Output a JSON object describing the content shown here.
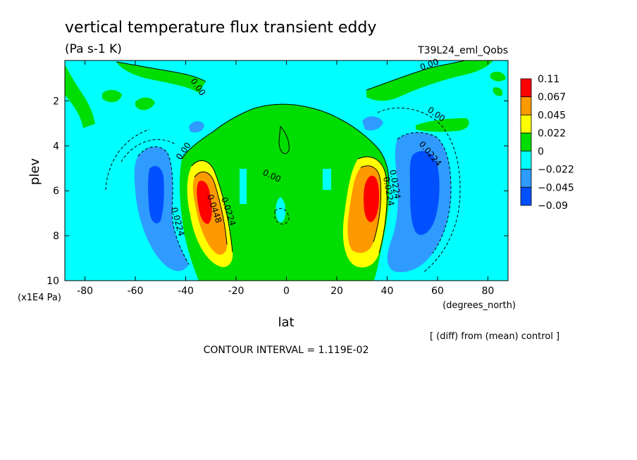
{
  "chart_data": {
    "type": "heatmap",
    "title": "vertical temperature flux transient eddy",
    "units": "(Pa s-1 K)",
    "run_label": "T39L24_eml_Qobs",
    "xlabel": "lat",
    "xunits": "(degrees_north)",
    "ylabel": "plev",
    "yunits": "(x1E4 Pa)",
    "xlim": [
      -88,
      88
    ],
    "ylim": [
      10,
      0.2
    ],
    "x_ticks": [
      -80,
      -60,
      -40,
      -20,
      0,
      20,
      40,
      60,
      80
    ],
    "x_tick_labels": [
      "-80",
      "-60",
      "-40",
      "-20",
      "0",
      "20",
      "40",
      "60",
      "80"
    ],
    "y_ticks": [
      2,
      4,
      6,
      8,
      10
    ],
    "y_tick_labels": [
      "2",
      "4",
      "6",
      "8",
      "10"
    ],
    "colorbar": {
      "labels": [
        "0.11",
        "0.067",
        "0.045",
        "0.022",
        "0",
        "−0.022",
        "−0.045",
        "−0.09"
      ],
      "colors": [
        "#ff0000",
        "#ff9900",
        "#ffff00",
        "#00dd00",
        "#00ffff",
        "#2f9bff",
        "#0050ff"
      ]
    },
    "contour_labels": [
      "0.00",
      "0.00",
      "0.00",
      "0.00",
      "0.0224",
      "0.0448",
      "0.0224",
      "0.0224",
      "0.0224",
      "0.00",
      "0.0224"
    ],
    "contour_interval": "CONTOUR INTERVAL = 1.119E-02",
    "footnote": "[ (diff) from (mean) control ]",
    "features": [
      {
        "type": "maximum",
        "lat": -33,
        "plev": 6.5,
        "value": 0.11
      },
      {
        "type": "maximum",
        "lat": 34,
        "plev": 6.5,
        "value": 0.11
      },
      {
        "type": "minimum",
        "lat": -52,
        "plev": 6.0,
        "value": -0.06
      },
      {
        "type": "minimum",
        "lat": 55,
        "plev": 6.0,
        "value": -0.07
      }
    ]
  }
}
